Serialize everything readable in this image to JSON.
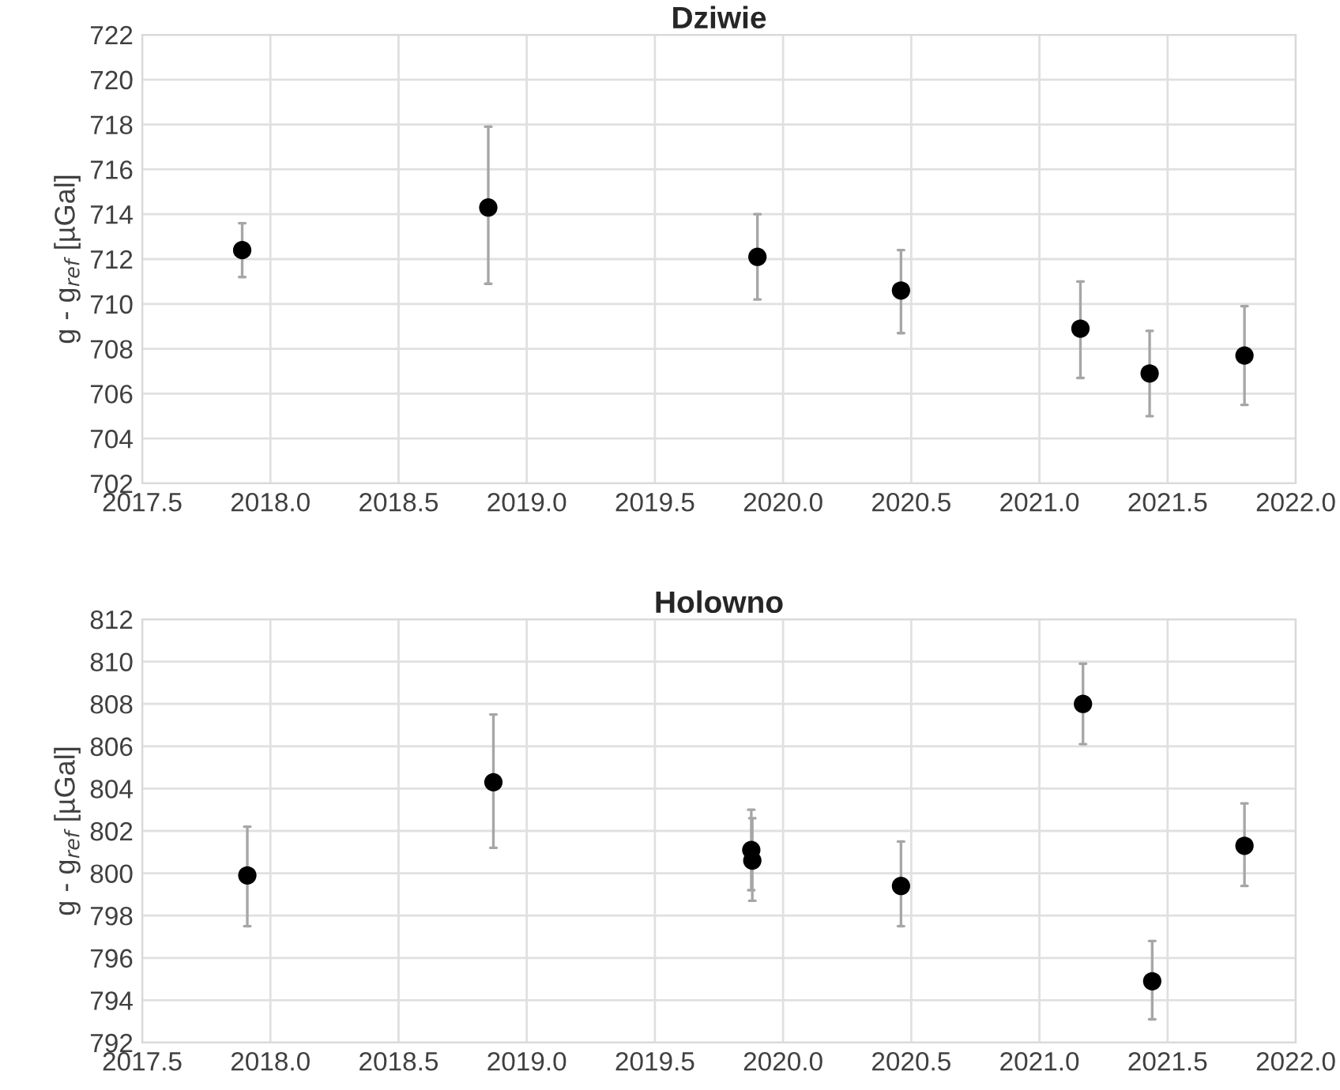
{
  "chart_data": [
    {
      "type": "scatter",
      "title": "Dziwie",
      "ylabel": "g - g$_{ref}$ [µGal]",
      "x": [
        2017.89,
        2018.85,
        2019.9,
        2020.46,
        2021.16,
        2021.43,
        2021.8
      ],
      "series": [
        {
          "color": "#000000",
          "values": [
            712.4,
            714.3,
            712.1,
            710.6,
            708.9,
            706.9,
            707.7
          ],
          "errors": [
            [
              711.2,
              713.6
            ],
            [
              710.9,
              717.9
            ],
            [
              710.2,
              714.0
            ],
            [
              708.7,
              712.4
            ],
            [
              706.7,
              711.0
            ],
            [
              705.0,
              708.8
            ],
            [
              705.5,
              709.9
            ]
          ]
        }
      ],
      "xlim": [
        2017.5,
        2022.0
      ],
      "xticks": [
        2017.5,
        {
          "value": 2018.0,
          "label": "2018.0"
        },
        2018.5,
        {
          "value": 2019.0,
          "label": "2019.0"
        },
        2019.5,
        {
          "value": 2020.0,
          "label": "2020.0"
        },
        2020.5,
        {
          "value": 2021.0,
          "label": "2021.0"
        },
        2021.5,
        {
          "value": 2022.0,
          "label": "2022.0"
        }
      ],
      "ylim": [
        702,
        722
      ],
      "yticks": [
        702,
        704,
        706,
        708,
        710,
        712,
        714,
        716,
        718,
        720,
        722
      ],
      "grid": true,
      "marker": "circle"
    },
    {
      "type": "scatter",
      "title": "Holowno",
      "ylabel": "g - g$_{ref}$ [µGal]",
      "x": [
        2017.91,
        2018.87,
        2019.876,
        2019.88,
        2020.46,
        2021.17,
        2021.44,
        2021.8
      ],
      "series": [
        {
          "color": "#000000",
          "values": [
            799.9,
            804.3,
            801.1,
            800.6,
            799.4,
            808.0,
            794.9,
            801.3
          ],
          "errors": [
            [
              797.5,
              802.2
            ],
            [
              801.2,
              807.5
            ],
            [
              799.2,
              803.0
            ],
            [
              798.7,
              802.6
            ],
            [
              797.5,
              801.5
            ],
            [
              806.1,
              809.9
            ],
            [
              793.1,
              796.8
            ],
            [
              799.4,
              803.3
            ]
          ]
        }
      ],
      "xlim": [
        2017.5,
        2022.0
      ],
      "xticks": [
        2017.5,
        {
          "value": 2018.0,
          "label": "2018.0"
        },
        2018.5,
        {
          "value": 2019.0,
          "label": "2019.0"
        },
        2019.5,
        {
          "value": 2020.0,
          "label": "2020.0"
        },
        2020.5,
        {
          "value": 2021.0,
          "label": "2021.0"
        },
        2021.5,
        {
          "value": 2022.0,
          "label": "2022.0"
        }
      ],
      "ylim": [
        792,
        812
      ],
      "yticks": [
        792,
        794,
        796,
        798,
        800,
        802,
        804,
        806,
        808,
        810,
        812
      ],
      "grid": true,
      "marker": "circle"
    }
  ]
}
